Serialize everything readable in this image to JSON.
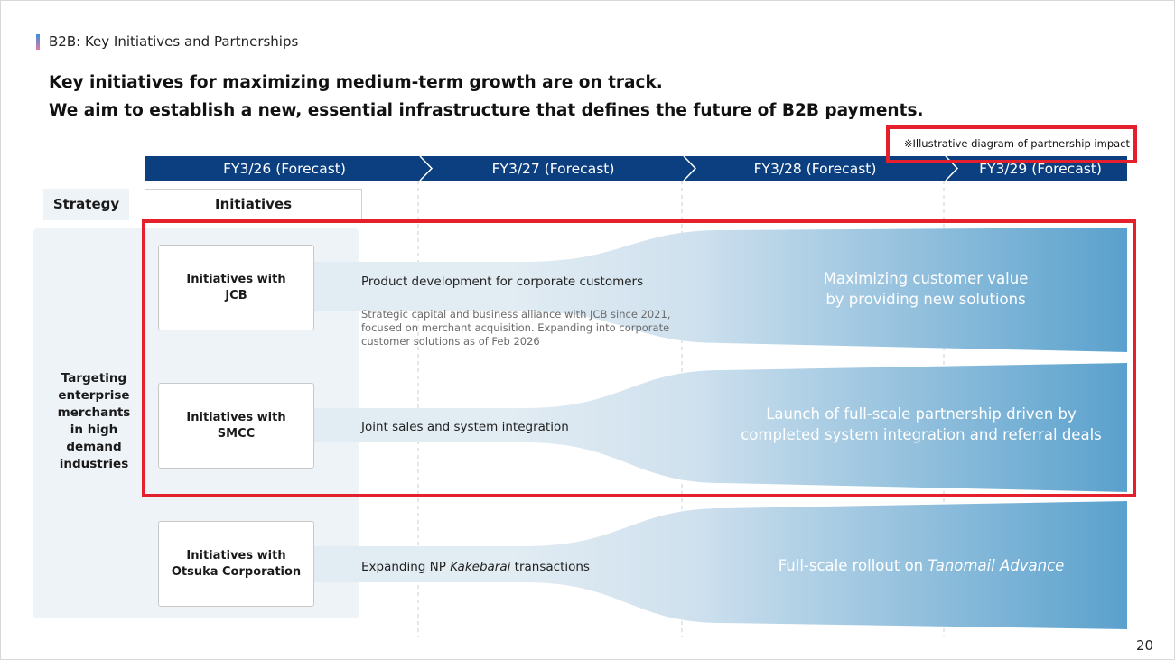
{
  "header": {
    "section": "B2B: Key Initiatives and Partnerships",
    "headline": [
      "Key initiatives for maximizing medium-term growth are on track.",
      "We aim to establish a new, essential infrastructure that defines the future of B2B payments."
    ],
    "note": "※Illustrative diagram of partnership impact"
  },
  "timeline": [
    "FY3/26 (Forecast)",
    "FY3/27 (Forecast)",
    "FY3/28 (Forecast)",
    "FY3/29 (Forecast)"
  ],
  "columns": {
    "strategy": "Strategy",
    "initiatives": "Initiatives"
  },
  "strategy": "Targeting enterprise merchants in high demand industries",
  "rows": [
    {
      "label": "Initiatives with JCB",
      "activity": {
        "text": "Product development for corporate customers"
      },
      "detail": "Strategic capital and business alliance with JCB since 2021, focused on merchant acquisition. Expanding into corporate customer solutions as of Feb 2026",
      "outcome": {
        "text": "Maximizing customer value by providing new solutions"
      }
    },
    {
      "label": "Initiatives with SMCC",
      "activity": {
        "text": "Joint sales and system integration"
      },
      "outcome": {
        "text": "Launch of full-scale partnership driven by completed system integration and referral deals"
      }
    },
    {
      "label": "Initiatives with Otsuka Corporation",
      "activity": {
        "text": "Expanding NP ",
        "em": "Kakebarai",
        "tail": " transactions"
      },
      "outcome": {
        "text": "Full-scale rollout on ",
        "em": "Tanomail Advance"
      }
    }
  ],
  "page_number": "20"
}
